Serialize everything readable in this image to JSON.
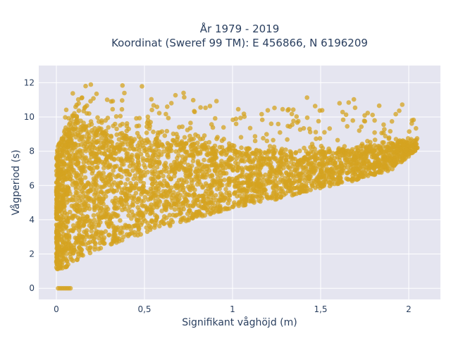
{
  "colors": {
    "plot_bg": "#e5e5f0",
    "grid": "#ffffff",
    "marker": "#d4a320",
    "text": "#2a3f5f"
  },
  "chart_data": {
    "type": "scatter",
    "title_line1": "År 1979 - 2019",
    "title_line2": "Koordinat (Sweref 99 TM): E 456866, N 6196209",
    "xlabel": "Signifikant våghöjd (m)",
    "ylabel": "Vågperiod (s)",
    "xlim": [
      -0.1,
      2.18
    ],
    "ylim": [
      -0.65,
      13.0
    ],
    "x_ticks": [
      0,
      0.5,
      1,
      1.5,
      2
    ],
    "x_tick_labels": [
      "0",
      "0,5",
      "1",
      "1,5",
      "2"
    ],
    "y_ticks": [
      0,
      2,
      4,
      6,
      8,
      10,
      12
    ],
    "y_tick_labels": [
      "0",
      "2",
      "4",
      "6",
      "8",
      "10",
      "12"
    ],
    "grid": true,
    "marker_opacity": 0.75,
    "envelope": {
      "h": [
        0.0,
        0.05,
        0.1,
        0.2,
        0.3,
        0.5,
        0.7,
        1.0,
        1.3,
        1.5,
        1.7,
        1.9,
        2.05
      ],
      "t_min": [
        1.1,
        1.2,
        1.5,
        2.1,
        2.5,
        3.2,
        3.8,
        4.7,
        5.3,
        5.8,
        6.3,
        6.9,
        8.1
      ],
      "t_dense_max": [
        8.0,
        9.5,
        10.0,
        9.5,
        9.2,
        8.8,
        8.5,
        8.2,
        8.0,
        8.0,
        8.2,
        8.5,
        8.8
      ],
      "t_outlier_max": [
        9.0,
        10.5,
        12.2,
        12.0,
        12.3,
        11.8,
        11.5,
        10.8,
        11.0,
        11.3,
        11.2,
        11.2,
        10.3
      ]
    },
    "calm_points": {
      "x": [
        0.01,
        0.02,
        0.03,
        0.04,
        0.05,
        0.06,
        0.07,
        0.08
      ],
      "y": [
        0,
        0,
        0,
        0,
        0,
        0,
        0,
        0
      ]
    }
  }
}
